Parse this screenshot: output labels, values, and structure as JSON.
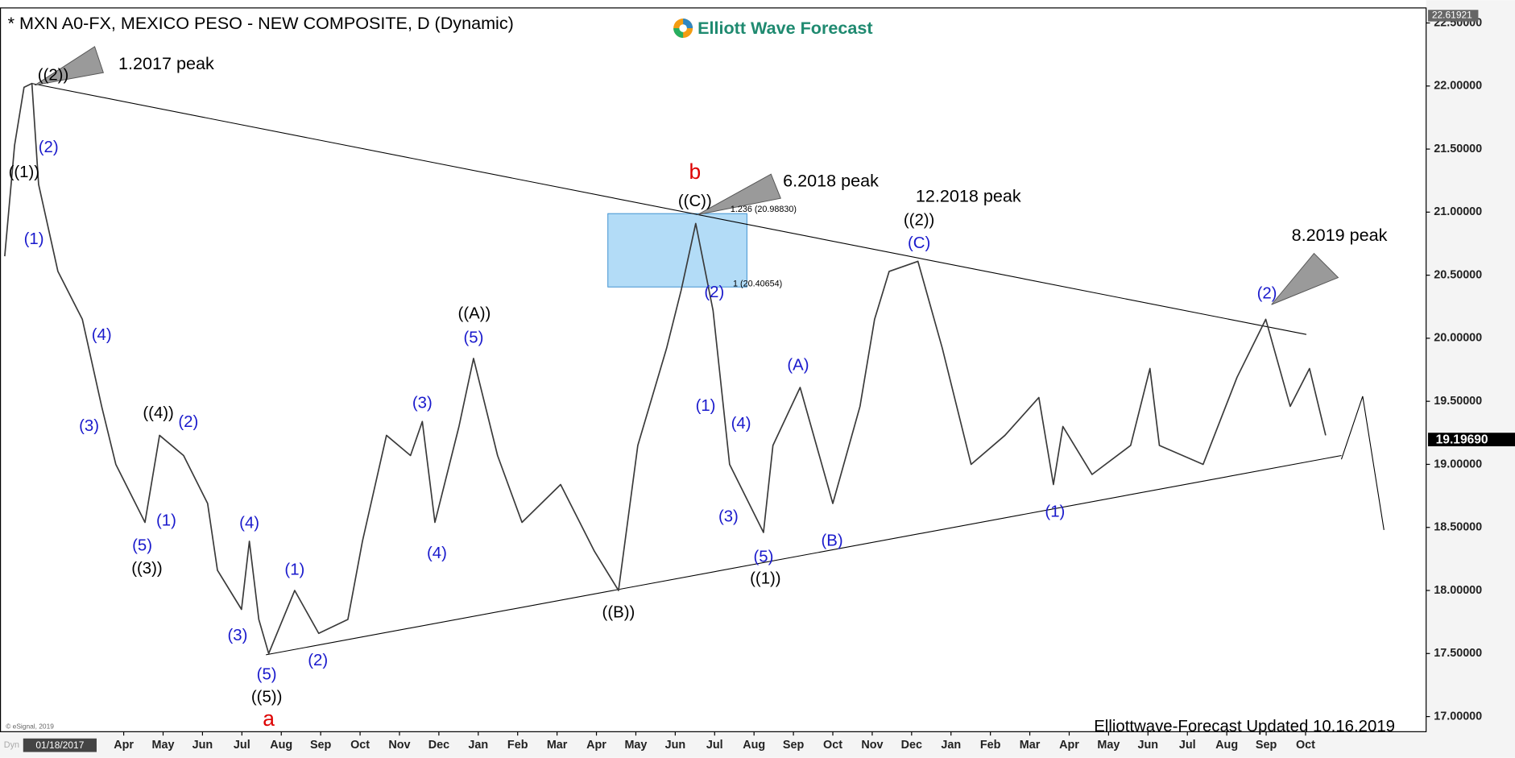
{
  "chart_data": {
    "type": "line",
    "title": "* MXN A0-FX, MEXICO PESO - NEW COMPOSITE, D (Dynamic)",
    "logo": "Elliott Wave Forecast",
    "footer": "Elliottwave-Forecast  Updated 10.16.2019",
    "credit": "© eSignal, 2019",
    "corner_label": "Dyn",
    "cursor_date": "01/18/2017",
    "color": "#3a3a3a",
    "x": [
      -0.02,
      0.23,
      0.47,
      0.67,
      0.84,
      1.33,
      1.95,
      2.44,
      2.8,
      3.54,
      3.91,
      4.52,
      5.13,
      5.38,
      5.99,
      6.19,
      6.43,
      6.68,
      7.34,
      7.95,
      8.69,
      9.06,
      9.67,
      10.28,
      10.58,
      10.9,
      11.51,
      11.88,
      12.49,
      13.11,
      14.09,
      14.95,
      15.56,
      16.05,
      16.78,
      17.15,
      17.52,
      17.96,
      18.38,
      19.24,
      19.48,
      20.17,
      21.0,
      21.69,
      22.06,
      22.43,
      23.16,
      23.78,
      24.51,
      25.37,
      26.23,
      26.6,
      26.84,
      27.58,
      28.56,
      29.05,
      29.29,
      30.4,
      31.26,
      31.99,
      32.61,
      33.1,
      33.51
    ],
    "values": [
      20.65,
      21.53,
      21.99,
      22.02,
      21.22,
      20.53,
      20.15,
      19.46,
      19.0,
      18.54,
      19.23,
      19.07,
      18.69,
      18.16,
      17.85,
      18.39,
      17.77,
      17.5,
      18.0,
      17.66,
      17.77,
      18.39,
      19.23,
      19.07,
      19.34,
      18.54,
      19.3,
      19.84,
      19.07,
      18.54,
      18.84,
      18.31,
      18.0,
      19.15,
      19.92,
      20.38,
      20.91,
      20.22,
      19.0,
      18.46,
      19.15,
      19.61,
      18.69,
      19.46,
      20.15,
      20.53,
      20.61,
      19.92,
      19.0,
      19.23,
      19.53,
      18.84,
      19.3,
      18.92,
      19.15,
      19.76,
      19.15,
      19.0,
      19.69,
      20.15,
      19.46,
      19.76,
      19.23
    ],
    "xlim": [
      -0.14,
      36.06
    ],
    "ylim": [
      16.88,
      22.61921
    ],
    "xticks": [
      {
        "value": 3,
        "label": "Apr"
      },
      {
        "value": 4,
        "label": "May"
      },
      {
        "value": 5,
        "label": "Jun"
      },
      {
        "value": 6,
        "label": "Jul"
      },
      {
        "value": 7,
        "label": "Aug"
      },
      {
        "value": 8,
        "label": "Sep"
      },
      {
        "value": 9,
        "label": "Oct"
      },
      {
        "value": 10,
        "label": "Nov"
      },
      {
        "value": 11,
        "label": "Dec"
      },
      {
        "value": 12,
        "label": "Jan"
      },
      {
        "value": 13,
        "label": "Feb"
      },
      {
        "value": 14,
        "label": "Mar"
      },
      {
        "value": 15,
        "label": "Apr"
      },
      {
        "value": 16,
        "label": "May"
      },
      {
        "value": 17,
        "label": "Jun"
      },
      {
        "value": 18,
        "label": "Jul"
      },
      {
        "value": 19,
        "label": "Aug"
      },
      {
        "value": 20,
        "label": "Sep"
      },
      {
        "value": 21,
        "label": "Oct"
      },
      {
        "value": 22,
        "label": "Nov"
      },
      {
        "value": 23,
        "label": "Dec"
      },
      {
        "value": 24,
        "label": "Jan"
      },
      {
        "value": 25,
        "label": "Feb"
      },
      {
        "value": 26,
        "label": "Mar"
      },
      {
        "value": 27,
        "label": "Apr"
      },
      {
        "value": 28,
        "label": "May"
      },
      {
        "value": 29,
        "label": "Jun"
      },
      {
        "value": 30,
        "label": "Jul"
      },
      {
        "value": 31,
        "label": "Aug"
      },
      {
        "value": 32,
        "label": "Sep"
      },
      {
        "value": 33,
        "label": "Oct"
      }
    ],
    "yticks": [
      {
        "value": 17,
        "label": "17.00000"
      },
      {
        "value": 17.5,
        "label": "17.50000"
      },
      {
        "value": 18,
        "label": "18.00000"
      },
      {
        "value": 18.5,
        "label": "18.50000"
      },
      {
        "value": 19,
        "label": "19.00000"
      },
      {
        "value": 19.5,
        "label": "19.50000"
      },
      {
        "value": 20,
        "label": "20.00000"
      },
      {
        "value": 20.5,
        "label": "20.50000"
      },
      {
        "value": 21,
        "label": "21.00000"
      },
      {
        "value": 21.5,
        "label": "21.50000"
      },
      {
        "value": 22,
        "label": "22.00000"
      },
      {
        "value": 22.5,
        "label": "22.50000"
      }
    ],
    "top_price": {
      "value": 22.61921,
      "label": "22.61921"
    },
    "last_price": {
      "value": 19.1969,
      "label": "19.19690"
    },
    "trendlines": [
      {
        "x": [
          0.67,
          33.02
        ],
        "y": [
          22.02,
          20.03
        ]
      },
      {
        "x": [
          6.61,
          33.91
        ],
        "y": [
          17.49,
          19.07
        ]
      }
    ],
    "projection": {
      "x": [
        33.91,
        34.45,
        34.99
      ],
      "y": [
        19.04,
        19.54,
        18.48
      ]
    },
    "fib_box": {
      "x": [
        15.29,
        18.82
      ],
      "y": [
        20.40654,
        20.9883
      ],
      "color": "#b3dcf7"
    },
    "annotations": [
      {
        "text": "(1)",
        "x": 0.72,
        "y": 20.78,
        "kind": "wave",
        "color": "#1a1acc"
      },
      {
        "text": "(2)",
        "x": 1.09,
        "y": 21.51,
        "kind": "wave",
        "color": "#1a1acc"
      },
      {
        "text": "(4)",
        "x": 2.44,
        "y": 20.02,
        "kind": "wave",
        "color": "#1a1acc"
      },
      {
        "text": "(3)",
        "x": 2.12,
        "y": 19.3,
        "kind": "wave",
        "color": "#1a1acc"
      },
      {
        "text": "(5)",
        "x": 3.47,
        "y": 18.35,
        "kind": "wave",
        "color": "#1a1acc"
      },
      {
        "text": "(1)",
        "x": 4.08,
        "y": 18.55,
        "kind": "wave",
        "color": "#1a1acc"
      },
      {
        "text": "(2)",
        "x": 4.64,
        "y": 19.33,
        "kind": "wave",
        "color": "#1a1acc"
      },
      {
        "text": "(4)",
        "x": 6.19,
        "y": 18.53,
        "kind": "wave",
        "color": "#1a1acc"
      },
      {
        "text": "(3)",
        "x": 5.89,
        "y": 17.64,
        "kind": "wave",
        "color": "#1a1acc"
      },
      {
        "text": "(5)",
        "x": 6.63,
        "y": 17.33,
        "kind": "wave",
        "color": "#1a1acc"
      },
      {
        "text": "(2)",
        "x": 7.93,
        "y": 17.44,
        "kind": "wave",
        "color": "#1a1acc"
      },
      {
        "text": "(1)",
        "x": 7.34,
        "y": 18.16,
        "kind": "wave",
        "color": "#1a1acc"
      },
      {
        "text": "(3)",
        "x": 10.58,
        "y": 19.48,
        "kind": "wave",
        "color": "#1a1acc"
      },
      {
        "text": "(4)",
        "x": 10.95,
        "y": 18.29,
        "kind": "wave",
        "color": "#1a1acc"
      },
      {
        "text": "(5)",
        "x": 11.88,
        "y": 20.0,
        "kind": "wave",
        "color": "#1a1acc"
      },
      {
        "text": "(1)",
        "x": 17.77,
        "y": 19.46,
        "kind": "wave",
        "color": "#1a1acc"
      },
      {
        "text": "(2)",
        "x": 17.99,
        "y": 20.36,
        "kind": "wave",
        "color": "#1a1acc"
      },
      {
        "text": "(4)",
        "x": 18.67,
        "y": 19.32,
        "kind": "wave",
        "color": "#1a1acc"
      },
      {
        "text": "(3)",
        "x": 18.35,
        "y": 18.58,
        "kind": "wave",
        "color": "#1a1acc"
      },
      {
        "text": "(5)",
        "x": 19.24,
        "y": 18.26,
        "kind": "wave",
        "color": "#1a1acc"
      },
      {
        "text": "(A)",
        "x": 20.12,
        "y": 19.78,
        "kind": "wave",
        "color": "#1a1acc"
      },
      {
        "text": "(B)",
        "x": 20.98,
        "y": 18.39,
        "kind": "wave",
        "color": "#1a1acc"
      },
      {
        "text": "(C)",
        "x": 23.19,
        "y": 20.75,
        "kind": "wave",
        "color": "#1a1acc"
      },
      {
        "text": "(1)",
        "x": 26.64,
        "y": 18.62,
        "kind": "wave",
        "color": "#1a1acc"
      },
      {
        "text": "(2)",
        "x": 32.02,
        "y": 20.35,
        "kind": "wave",
        "color": "#1a1acc"
      },
      {
        "text": "((1))",
        "x": 0.47,
        "y": 21.31,
        "kind": "wave",
        "color": "#000000"
      },
      {
        "text": "((2))",
        "x": 1.21,
        "y": 22.08,
        "kind": "wave",
        "color": "#000000"
      },
      {
        "text": "((3))",
        "x": 3.59,
        "y": 18.17,
        "kind": "wave",
        "color": "#000000"
      },
      {
        "text": "((4))",
        "x": 3.88,
        "y": 19.4,
        "kind": "wave",
        "color": "#000000"
      },
      {
        "text": "((5))",
        "x": 6.63,
        "y": 17.15,
        "kind": "wave",
        "color": "#000000"
      },
      {
        "text": "((A))",
        "x": 11.9,
        "y": 20.19,
        "kind": "wave",
        "color": "#000000"
      },
      {
        "text": "((B))",
        "x": 15.56,
        "y": 17.82,
        "kind": "wave",
        "color": "#000000"
      },
      {
        "text": "((C))",
        "x": 17.5,
        "y": 21.08,
        "kind": "wave",
        "color": "#000000"
      },
      {
        "text": "((1))",
        "x": 19.29,
        "y": 18.09,
        "kind": "wave",
        "color": "#000000"
      },
      {
        "text": "((2))",
        "x": 23.19,
        "y": 20.93,
        "kind": "wave",
        "color": "#000000"
      },
      {
        "text": "b",
        "x": 17.5,
        "y": 21.31,
        "kind": "degree",
        "color": "#dd0000"
      },
      {
        "text": "a",
        "x": 6.68,
        "y": 16.97,
        "kind": "degree",
        "color": "#dd0000"
      },
      {
        "text": "1.2017 peak",
        "x": 4.08,
        "y": 22.17,
        "kind": "peak",
        "color": "#000000"
      },
      {
        "text": "6.2018 peak",
        "x": 20.95,
        "y": 21.24,
        "kind": "peak",
        "color": "#000000"
      },
      {
        "text": "12.2018 peak",
        "x": 24.44,
        "y": 21.12,
        "kind": "peak",
        "color": "#000000"
      },
      {
        "text": "8.2019 peak",
        "x": 33.86,
        "y": 20.81,
        "kind": "peak",
        "color": "#000000"
      },
      {
        "text": "1.236 (20.98830)",
        "x": 19.24,
        "y": 21.02,
        "kind": "fib",
        "color": "#000000"
      },
      {
        "text": "1 (20.40654)",
        "x": 19.09,
        "y": 20.43,
        "kind": "fib",
        "color": "#000000"
      }
    ]
  }
}
